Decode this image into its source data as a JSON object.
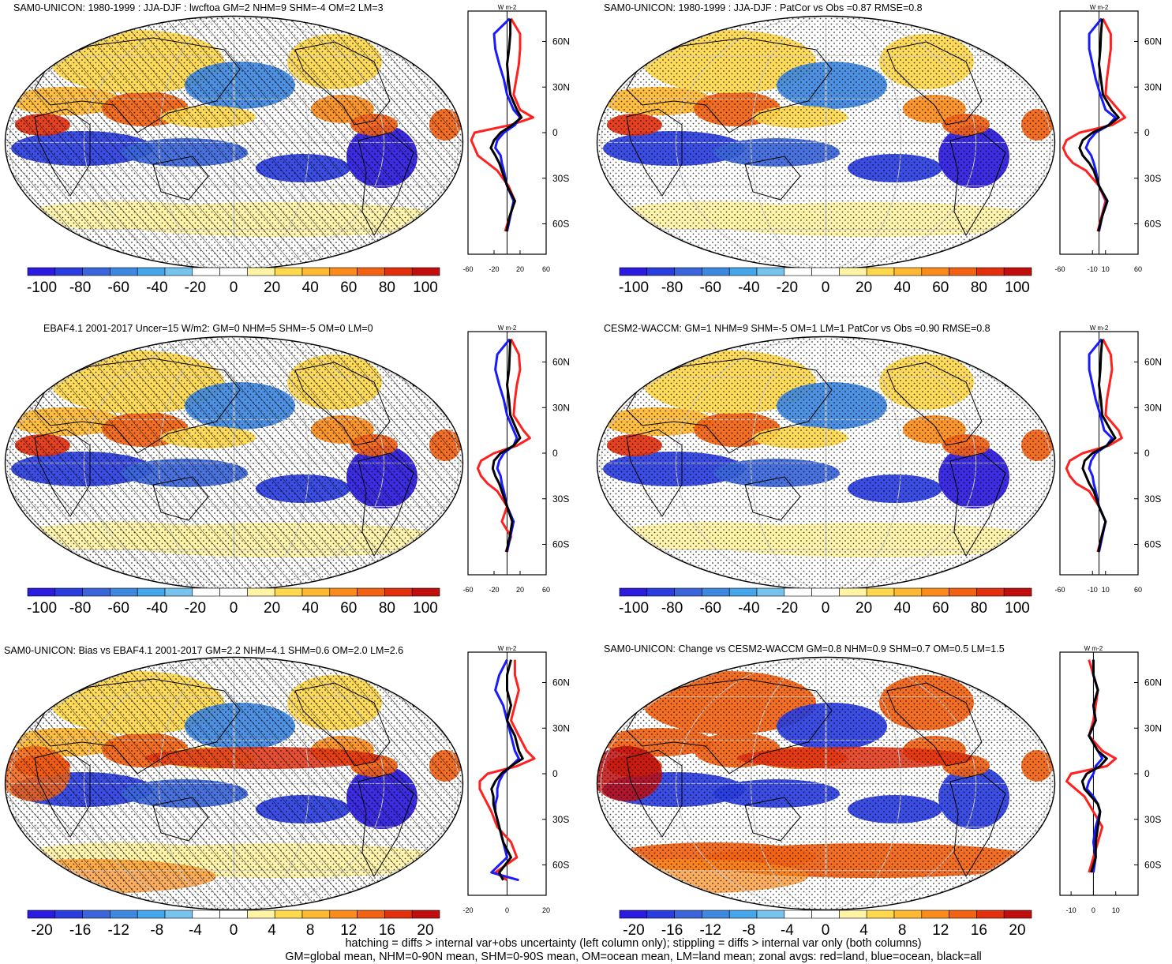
{
  "colors": {
    "scale": [
      "#2b1ae0",
      "#2a3ee0",
      "#3b66db",
      "#3f88e0",
      "#46a6ea",
      "#77c3ee",
      "#ffffff",
      "#ffffff",
      "#fff3a6",
      "#ffd84d",
      "#ffb831",
      "#fb8c1c",
      "#f26212",
      "#e2300f",
      "#c20d0d"
    ],
    "land": "#ff2020",
    "ocean": "#1a1aff",
    "all": "#000000"
  },
  "panels": [
    {
      "title": "SAM0-UNICON: 1980-1999 : JJA-DJF : lwcftoa GM=2 NHM=9 SHM=-4 OM=2 LM=3",
      "cbar_labels": [
        "-100",
        "-80",
        "-60",
        "-40",
        "-20",
        "0",
        "20",
        "40",
        "60",
        "80",
        "100"
      ],
      "zonal": {
        "units": "W m-2",
        "xticks": [
          "-60",
          "-20",
          "20",
          "60"
        ],
        "yticks": [
          "60N",
          "30N",
          "0",
          "30S",
          "60S"
        ],
        "xlim": [
          -60,
          60
        ],
        "lat": [
          75,
          65,
          55,
          45,
          35,
          25,
          15,
          10,
          5,
          0,
          -5,
          -10,
          -15,
          -20,
          -25,
          -35,
          -45,
          -55,
          -65
        ],
        "land": [
          6,
          20,
          20,
          18,
          14,
          10,
          20,
          40,
          5,
          -50,
          -55,
          -50,
          -45,
          -30,
          -15,
          2,
          12,
          4,
          -3
        ],
        "ocean": [
          4,
          -20,
          -18,
          -12,
          -5,
          0,
          10,
          20,
          12,
          -5,
          -15,
          -18,
          -10,
          -8,
          -5,
          0,
          10,
          5,
          0
        ],
        "all": [
          5,
          5,
          3,
          0,
          2,
          5,
          15,
          22,
          8,
          -10,
          -20,
          -25,
          -18,
          -12,
          -8,
          0,
          12,
          4,
          -1
        ]
      }
    },
    {
      "title": "SAM0-UNICON: 1980-1999 : JJA-DJF : PatCor vs Obs =0.87 RMSE=0.8",
      "cbar_labels": [
        "-100",
        "-80",
        "-60",
        "-40",
        "-20",
        "0",
        "20",
        "40",
        "60",
        "80",
        "100"
      ],
      "zonal": {
        "units": "W m-2",
        "xticks": [
          "-60",
          "-10",
          "10",
          "60"
        ],
        "yticks": [
          "60N",
          "30N",
          "0",
          "30S",
          "60S"
        ],
        "xlim": [
          -60,
          60
        ],
        "lat": [
          75,
          65,
          55,
          45,
          35,
          25,
          15,
          10,
          5,
          0,
          -5,
          -10,
          -15,
          -20,
          -25,
          -35,
          -45,
          -55,
          -65
        ],
        "land": [
          6,
          18,
          18,
          15,
          12,
          10,
          30,
          40,
          20,
          -30,
          -50,
          -55,
          -50,
          -40,
          -20,
          0,
          10,
          4,
          -2
        ],
        "ocean": [
          4,
          -15,
          -15,
          -10,
          -5,
          2,
          10,
          25,
          15,
          -5,
          -15,
          -20,
          -12,
          -8,
          -5,
          0,
          12,
          5,
          0
        ],
        "all": [
          5,
          3,
          2,
          0,
          3,
          6,
          20,
          30,
          15,
          -10,
          -25,
          -30,
          -25,
          -15,
          -8,
          0,
          13,
          5,
          -1
        ]
      }
    },
    {
      "title": "EBAF4.1 2001-2017 Uncer=15 W/m2: GM=0 NHM=5 SHM=-5 OM=0 LM=0",
      "cbar_labels": [
        "-100",
        "-80",
        "-60",
        "-40",
        "-20",
        "0",
        "20",
        "40",
        "60",
        "80",
        "100"
      ],
      "zonal": {
        "units": "W m-2",
        "xticks": [
          "-60",
          "-20",
          "20",
          "60"
        ],
        "yticks": [
          "60N",
          "30N",
          "0",
          "30S",
          "60S"
        ],
        "xlim": [
          -60,
          60
        ],
        "lat": [
          75,
          65,
          55,
          45,
          35,
          25,
          15,
          10,
          5,
          0,
          -5,
          -10,
          -15,
          -20,
          -25,
          -35,
          -45,
          -55,
          -65
        ],
        "land": [
          6,
          18,
          20,
          15,
          12,
          10,
          25,
          35,
          15,
          -20,
          -40,
          -45,
          -40,
          -30,
          -15,
          0,
          -8,
          6,
          -2
        ],
        "ocean": [
          4,
          -15,
          -18,
          -12,
          -5,
          0,
          10,
          15,
          10,
          -5,
          -12,
          -15,
          -10,
          -8,
          -5,
          0,
          10,
          5,
          0
        ],
        "all": [
          5,
          4,
          3,
          0,
          3,
          5,
          15,
          20,
          10,
          -10,
          -20,
          -22,
          -18,
          -12,
          -8,
          0,
          8,
          4,
          -1
        ]
      }
    },
    {
      "title": "CESM2-WACCM: GM=1 NHM=9 SHM=-5 OM=1 LM=1 PatCor vs Obs =0.90 RMSE=0.8",
      "cbar_labels": [
        "-100",
        "-80",
        "-60",
        "-40",
        "-20",
        "0",
        "20",
        "40",
        "60",
        "80",
        "100"
      ],
      "zonal": {
        "units": "W m-2",
        "xticks": [
          "-60",
          "-10",
          "10",
          "60"
        ],
        "yticks": [
          "60N",
          "30N",
          "0",
          "30S",
          "60S"
        ],
        "xlim": [
          -60,
          60
        ],
        "lat": [
          75,
          65,
          55,
          45,
          35,
          25,
          15,
          10,
          5,
          0,
          -5,
          -10,
          -15,
          -20,
          -25,
          -35,
          -45,
          -55,
          -65
        ],
        "land": [
          6,
          18,
          20,
          16,
          12,
          10,
          30,
          35,
          15,
          -25,
          -45,
          -50,
          -45,
          -35,
          -15,
          0,
          10,
          4,
          -2
        ],
        "ocean": [
          4,
          -15,
          -15,
          -10,
          -5,
          2,
          8,
          20,
          12,
          -5,
          -12,
          -15,
          -10,
          -8,
          -5,
          0,
          10,
          5,
          0
        ],
        "all": [
          5,
          3,
          2,
          0,
          3,
          5,
          18,
          25,
          12,
          -10,
          -22,
          -25,
          -20,
          -15,
          -8,
          0,
          10,
          4,
          -1
        ]
      }
    },
    {
      "title": "SAM0-UNICON: Bias vs EBAF4.1 2001-2017 GM=2.2 NHM=4.1 SHM=0.6 OM=2.0 LM=2.6",
      "cbar_labels": [
        "-20",
        "-16",
        "-12",
        "-8",
        "-4",
        "0",
        "4",
        "8",
        "12",
        "16",
        "20"
      ],
      "zonal": {
        "units": "W m-2",
        "xticks": [
          "-20",
          "0",
          "20"
        ],
        "yticks": [
          "60N",
          "30N",
          "0",
          "30S",
          "60S"
        ],
        "xlim": [
          -20,
          20
        ],
        "lat": [
          75,
          65,
          55,
          45,
          35,
          25,
          15,
          10,
          5,
          0,
          -5,
          -10,
          -15,
          -20,
          -25,
          -35,
          -45,
          -55,
          -65,
          -70
        ],
        "land": [
          4,
          4,
          6,
          4,
          2,
          6,
          10,
          14,
          5,
          -10,
          -14,
          -14,
          -12,
          -10,
          -8,
          -5,
          2,
          5,
          -6,
          0
        ],
        "ocean": [
          0,
          -4,
          -6,
          -2,
          0,
          2,
          4,
          6,
          2,
          -2,
          -4,
          -5,
          -5,
          -6,
          -6,
          -4,
          -2,
          0,
          -8,
          6
        ],
        "all": [
          2,
          0,
          0,
          2,
          0,
          4,
          6,
          8,
          2,
          -3,
          -6,
          -8,
          -7,
          -7,
          -6,
          -4,
          -2,
          2,
          -4,
          -2
        ]
      }
    },
    {
      "title": "SAM0-UNICON: Change vs CESM2-WACCM GM=0.8 NHM=0.9 SHM=0.7 OM=0.5 LM=1.5",
      "cbar_labels": [
        "-20",
        "-16",
        "-12",
        "-8",
        "-4",
        "0",
        "4",
        "8",
        "12",
        "16",
        "20"
      ],
      "zonal": {
        "units": "W m-2",
        "xticks": [
          "-10",
          "0",
          "10"
        ],
        "yticks": [
          "60N",
          "30N",
          "0",
          "30S",
          "60S"
        ],
        "xlim": [
          -15,
          20
        ],
        "lat": [
          75,
          65,
          55,
          45,
          35,
          25,
          15,
          10,
          5,
          0,
          -5,
          -10,
          -15,
          -20,
          -25,
          -35,
          -45,
          -55,
          -65
        ],
        "land": [
          -2,
          0,
          2,
          1,
          0,
          -2,
          4,
          10,
          6,
          -10,
          -12,
          -8,
          -4,
          -2,
          0,
          4,
          2,
          0,
          -2
        ],
        "ocean": [
          0,
          0,
          2,
          0,
          1,
          -2,
          2,
          4,
          1,
          0,
          -2,
          -3,
          0,
          2,
          3,
          1,
          0,
          1,
          0
        ],
        "all": [
          0,
          0,
          2,
          0,
          1,
          -2,
          2,
          6,
          3,
          -3,
          -5,
          -4,
          -1,
          2,
          3,
          2,
          1,
          1,
          -1
        ]
      }
    }
  ],
  "footer": {
    "line1": "hatching = diffs > internal var+obs uncertainty (left column only); stippling = diffs > internal var only (both columns)",
    "line2": "GM=global mean, NHM=0-90N mean, SHM=0-90S mean, OM=ocean mean, LM=land mean; zonal avgs: red=land, blue=ocean, black=all"
  }
}
